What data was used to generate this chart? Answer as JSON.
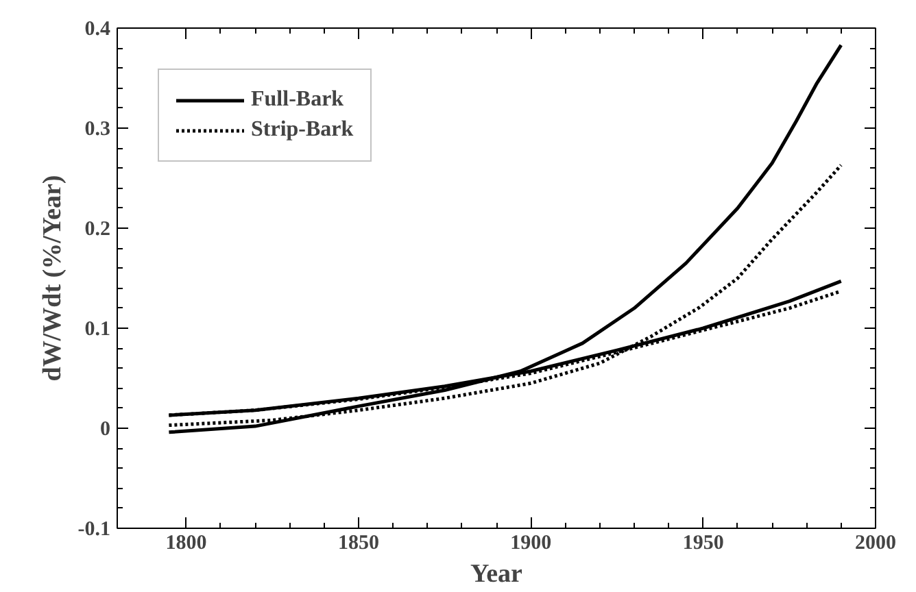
{
  "chart_data": {
    "type": "line",
    "xlabel": "Year",
    "ylabel": "dW/Wdt (%/Year)",
    "xlim": [
      1780,
      2000
    ],
    "ylim": [
      -0.1,
      0.4
    ],
    "xticks": [
      1800,
      1850,
      1900,
      1950,
      2000
    ],
    "yticks": [
      -0.1,
      0,
      0.1,
      0.2,
      0.3,
      0.4
    ],
    "grid": false,
    "legend": "top left",
    "series": [
      {
        "name": "Full-Bark",
        "color": "#000000",
        "line_style": "solid",
        "x": [
          1795,
          1820,
          1850,
          1875,
          1897,
          1915,
          1930,
          1945,
          1960,
          1970,
          1977,
          1983,
          1990
        ],
        "values": [
          -0.004,
          0.002,
          0.022,
          0.038,
          0.057,
          0.085,
          0.12,
          0.165,
          0.22,
          0.265,
          0.307,
          0.345,
          0.383
        ]
      },
      {
        "color": "#000000",
        "line_style": "solid",
        "x": [
          1795,
          1820,
          1850,
          1875,
          1900,
          1925,
          1950,
          1975,
          1990
        ],
        "values": [
          0.013,
          0.018,
          0.03,
          0.042,
          0.057,
          0.078,
          0.1,
          0.127,
          0.147
        ]
      },
      {
        "name": "Strip-Bark",
        "color": "#000000",
        "line_style": "dotted",
        "x": [
          1795,
          1825,
          1850,
          1875,
          1900,
          1920,
          1935,
          1949,
          1960,
          1970,
          1983,
          1990
        ],
        "values": [
          0.003,
          0.008,
          0.018,
          0.03,
          0.045,
          0.065,
          0.092,
          0.121,
          0.15,
          0.189,
          0.236,
          0.263
        ]
      },
      {
        "color": "#000000",
        "line_style": "dotted",
        "x": [
          1795,
          1820,
          1850,
          1875,
          1900,
          1925,
          1950,
          1975,
          1990
        ],
        "values": [
          0.013,
          0.018,
          0.029,
          0.041,
          0.055,
          0.076,
          0.098,
          0.12,
          0.137
        ]
      }
    ]
  }
}
